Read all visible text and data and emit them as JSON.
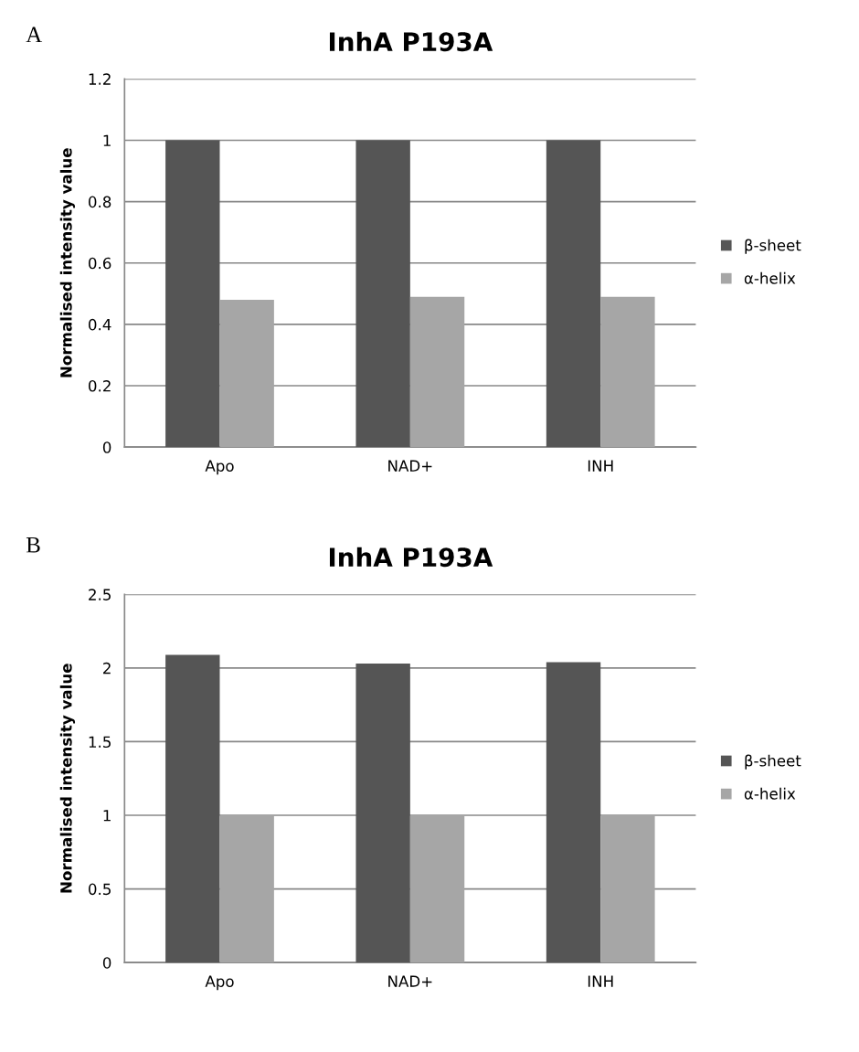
{
  "chart_data": [
    {
      "type": "bar",
      "title": "InhA P193A",
      "annotations": [
        "A"
      ],
      "ylabel": "Normalised intensity value",
      "categories": [
        "Apo",
        "NAD+",
        "INH"
      ],
      "series": [
        {
          "name": "β-sheet",
          "color": "#555555",
          "values": [
            1,
            1,
            1
          ]
        },
        {
          "name": "α-helix",
          "color": "#a6a6a6",
          "values": [
            0.48,
            0.49,
            0.49
          ]
        }
      ],
      "ylim": [
        0,
        1.2
      ],
      "yticks": [
        0,
        {
          "value": 0.2,
          "label": "0.2"
        },
        {
          "value": 0.4,
          "label": "0.4"
        },
        {
          "value": 0.6,
          "label": "0.6"
        },
        {
          "value": 0.8,
          "label": "0.8"
        },
        1,
        {
          "value": 1.2,
          "label": "1.2"
        }
      ],
      "grid": "y",
      "legend": "right"
    },
    {
      "type": "bar",
      "title": "InhA P193A",
      "annotations": [
        "B"
      ],
      "ylabel": "Normalised intensity value",
      "categories": [
        "Apo",
        "NAD+",
        "INH"
      ],
      "series": [
        {
          "name": "β-sheet",
          "color": "#555555",
          "values": [
            2.09,
            2.03,
            2.04
          ]
        },
        {
          "name": "α-helix",
          "color": "#a6a6a6",
          "values": [
            1,
            1,
            1
          ]
        }
      ],
      "ylim": [
        0,
        2.5
      ],
      "yticks": [
        0,
        {
          "value": 0.5,
          "label": "0.5"
        },
        1,
        {
          "value": 1.5,
          "label": "1.5"
        },
        2,
        {
          "value": 2.5,
          "label": "2.5"
        }
      ],
      "grid": "y",
      "legend": "right"
    }
  ]
}
